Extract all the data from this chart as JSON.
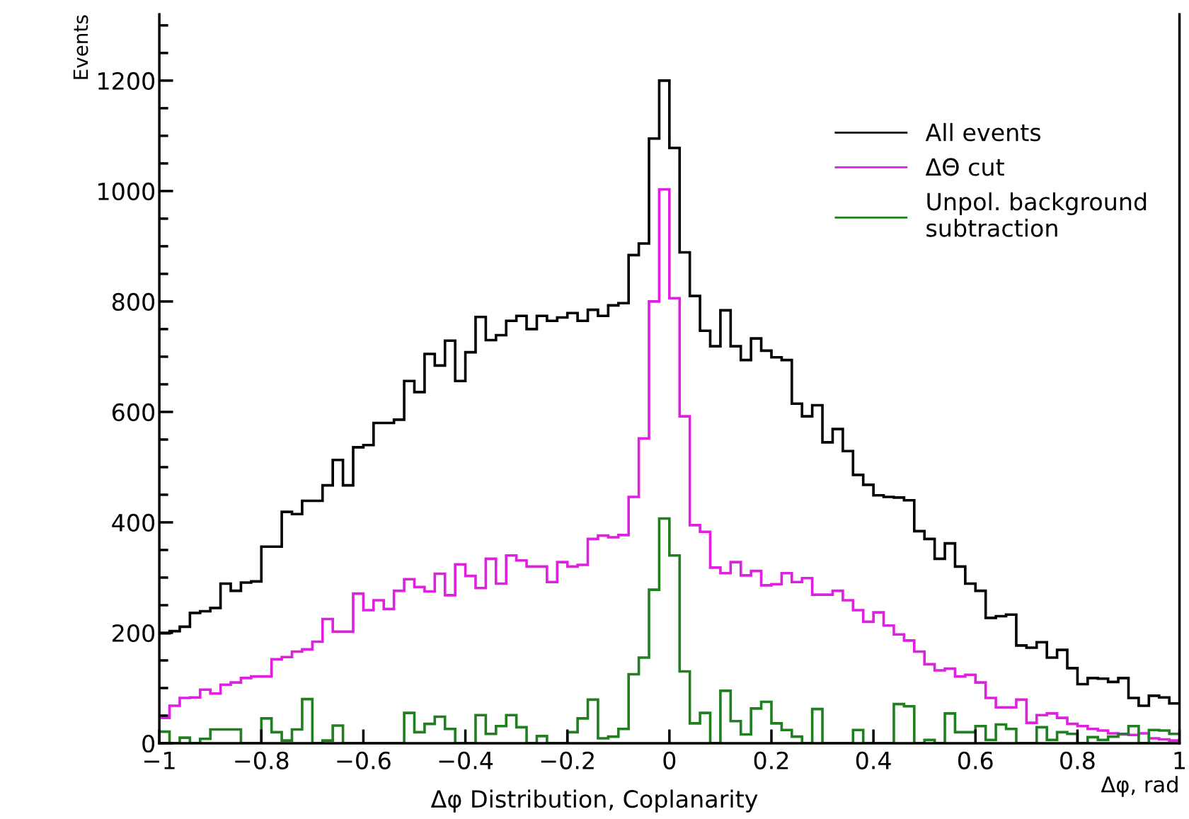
{
  "chart_data": {
    "type": "histogram",
    "title": "Δφ Distribution, Coplanarity",
    "xlabel": "Δφ, rad",
    "ylabel": "Events",
    "bins": [
      -1,
      -0.98,
      -0.96,
      -0.94,
      -0.92,
      -0.9,
      -0.88,
      -0.86,
      -0.84,
      -0.82,
      -0.8,
      -0.78,
      -0.76,
      -0.74,
      -0.72,
      -0.7,
      -0.68,
      -0.66,
      -0.64,
      -0.62,
      -0.6,
      -0.58,
      -0.56,
      -0.54,
      -0.52,
      -0.5,
      -0.48,
      -0.46,
      -0.44,
      -0.42,
      -0.4,
      -0.38,
      -0.36,
      -0.34,
      -0.32,
      -0.3,
      -0.28,
      -0.26,
      -0.24,
      -0.22,
      -0.2,
      -0.18,
      -0.16,
      -0.14,
      -0.12,
      -0.1,
      -0.08,
      -0.06,
      -0.04,
      -0.02,
      0,
      0.02,
      0.04,
      0.06,
      0.08,
      0.1,
      0.12,
      0.14,
      0.16,
      0.18,
      0.2,
      0.22,
      0.24,
      0.26,
      0.28,
      0.3,
      0.32,
      0.34,
      0.36,
      0.38,
      0.4,
      0.42,
      0.44,
      0.46,
      0.48,
      0.5,
      0.52,
      0.54,
      0.56,
      0.58,
      0.6,
      0.62,
      0.64,
      0.66,
      0.68,
      0.7,
      0.72,
      0.74,
      0.76,
      0.78,
      0.8,
      0.82,
      0.84,
      0.86,
      0.88,
      0.9,
      0.92,
      0.94,
      0.96,
      0.98,
      1
    ],
    "series": [
      {
        "name": "All events",
        "color": "#000000",
        "values": [
          199,
          203,
          211,
          236,
          239,
          245,
          289,
          276,
          291,
          293,
          356,
          356,
          419,
          415,
          439,
          439,
          467,
          513,
          467,
          536,
          540,
          580,
          580,
          586,
          656,
          636,
          705,
          684,
          729,
          656,
          708,
          772,
          730,
          739,
          765,
          774,
          750,
          774,
          765,
          771,
          779,
          765,
          785,
          774,
          793,
          797,
          884,
          905,
          1095,
          1200,
          1078,
          889,
          810,
          747,
          719,
          784,
          719,
          694,
          733,
          711,
          699,
          694,
          615,
          592,
          612,
          545,
          569,
          529,
          486,
          468,
          449,
          446,
          445,
          440,
          384,
          370,
          334,
          362,
          320,
          289,
          276,
          227,
          230,
          233,
          177,
          173,
          183,
          155,
          169,
          136,
          107,
          118,
          117,
          111,
          118,
          82,
          68,
          86,
          83,
          72
        ]
      },
      {
        "name": "ΔΘ cut",
        "color": "#e020e0",
        "values": [
          46,
          68,
          82,
          83,
          97,
          90,
          106,
          110,
          118,
          121,
          121,
          152,
          156,
          166,
          170,
          184,
          225,
          202,
          202,
          271,
          241,
          259,
          243,
          276,
          297,
          283,
          275,
          307,
          268,
          324,
          303,
          281,
          334,
          289,
          340,
          331,
          320,
          320,
          292,
          328,
          320,
          323,
          370,
          376,
          373,
          377,
          446,
          552,
          800,
          1003,
          806,
          592,
          395,
          383,
          318,
          308,
          328,
          304,
          312,
          286,
          288,
          308,
          292,
          299,
          269,
          269,
          276,
          259,
          241,
          220,
          237,
          213,
          197,
          186,
          166,
          143,
          132,
          135,
          121,
          124,
          110,
          82,
          65,
          65,
          79,
          37,
          51,
          54,
          46,
          35,
          31,
          26,
          23,
          18,
          16,
          15,
          18,
          9,
          7,
          5
        ]
      },
      {
        "name": "Unpol. background\nsubtraction",
        "color": "#208020",
        "values": [
          21,
          0,
          10,
          0,
          8,
          25,
          25,
          25,
          0,
          0,
          45,
          20,
          5,
          25,
          80,
          0,
          5,
          32,
          0,
          0,
          0,
          0,
          0,
          0,
          55,
          20,
          35,
          48,
          26,
          0,
          0,
          51,
          17,
          31,
          51,
          29,
          0,
          13,
          0,
          0,
          20,
          45,
          79,
          9,
          12,
          26,
          125,
          155,
          278,
          407,
          340,
          130,
          36,
          55,
          0,
          95,
          40,
          16,
          63,
          75,
          36,
          24,
          12,
          0,
          62,
          0,
          0,
          0,
          24,
          0,
          0,
          0,
          71,
          67,
          0,
          6,
          0,
          54,
          20,
          20,
          31,
          6,
          34,
          26,
          0,
          0,
          29,
          6,
          20,
          17,
          0,
          11,
          6,
          12,
          17,
          31,
          0,
          24,
          23,
          17
        ]
      }
    ],
    "xlim": [
      -1,
      1
    ],
    "xticks": [
      {
        "value": -1,
        "label": "−1"
      },
      {
        "value": -0.8,
        "label": "−0.8"
      },
      {
        "value": -0.6,
        "label": "−0.6"
      },
      {
        "value": -0.4,
        "label": "−0.4"
      },
      {
        "value": -0.2,
        "label": "−0.2"
      },
      0,
      0.2,
      0.4,
      0.6,
      0.8,
      1
    ],
    "ylim": [
      0,
      1320
    ],
    "yticks": [
      0,
      200,
      400,
      600,
      800,
      1000,
      1200
    ],
    "legend": "top right",
    "grid": false
  }
}
